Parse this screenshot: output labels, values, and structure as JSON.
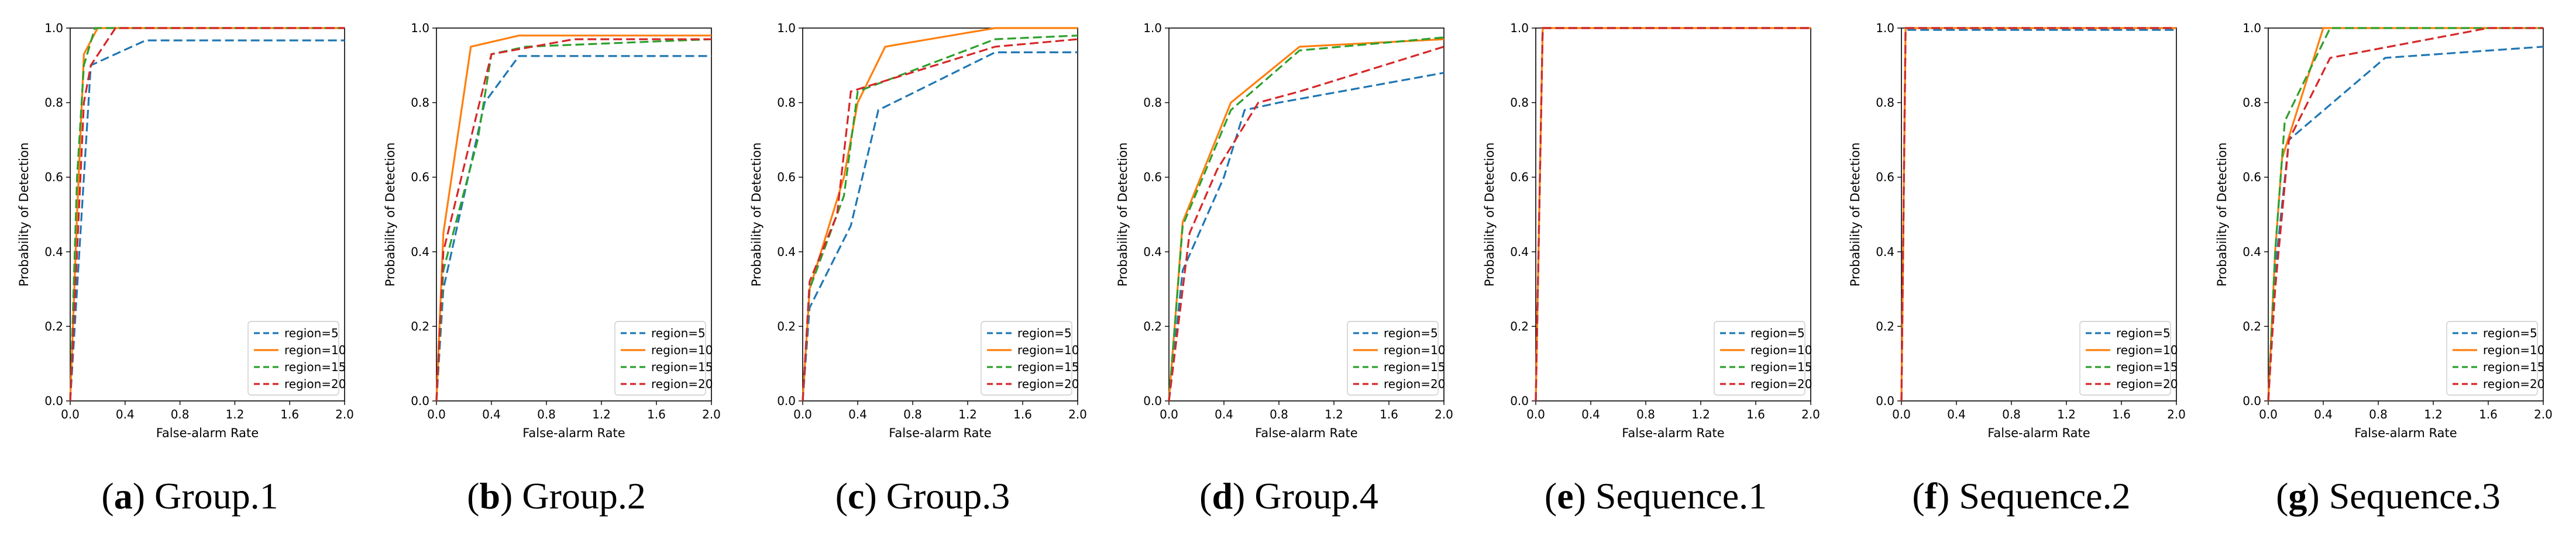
{
  "series_styles": {
    "region=5": {
      "color": "#1f77b4",
      "dash": "dashed"
    },
    "region=10": {
      "color": "#ff7f0e",
      "dash": "solid"
    },
    "region=15": {
      "color": "#2ca02c",
      "dash": "dashed"
    },
    "region=20": {
      "color": "#d62728",
      "dash": "dashed"
    }
  },
  "chart_data": [
    {
      "type": "line",
      "caption": {
        "letter": "a",
        "text": "Group.1"
      },
      "xlabel": "False-alarm Rate",
      "ylabel": "Probability of Detection",
      "xlim": [
        0,
        2.0
      ],
      "ylim": [
        0,
        1.0
      ],
      "xticks": [
        "0.0",
        "0.4",
        "0.8",
        "1.2",
        "1.6",
        "2.0"
      ],
      "yticks": [
        "0.0",
        "0.2",
        "0.4",
        "0.6",
        "0.8",
        "1.0"
      ],
      "legend": [
        "region=5",
        "region=10",
        "region=15",
        "region=20"
      ],
      "legend_position": "lower-right",
      "series": [
        {
          "name": "region=5",
          "x": [
            0,
            0.05,
            0.1,
            0.15,
            0.55,
            2.0
          ],
          "y": [
            0,
            0.3,
            0.6,
            0.9,
            0.967,
            0.967
          ]
        },
        {
          "name": "region=10",
          "x": [
            0,
            0.05,
            0.1,
            0.2,
            2.0
          ],
          "y": [
            0,
            0.5,
            0.93,
            1.0,
            1.0
          ]
        },
        {
          "name": "region=15",
          "x": [
            0,
            0.05,
            0.1,
            0.18,
            2.0
          ],
          "y": [
            0,
            0.6,
            0.9,
            1.0,
            1.0
          ]
        },
        {
          "name": "region=20",
          "x": [
            0,
            0.05,
            0.1,
            0.15,
            0.33,
            2.0
          ],
          "y": [
            0,
            0.4,
            0.8,
            0.9,
            1.0,
            1.0
          ]
        }
      ]
    },
    {
      "type": "line",
      "caption": {
        "letter": "b",
        "text": "Group.2"
      },
      "xlabel": "False-alarm Rate",
      "ylabel": "Probability of Detection",
      "xlim": [
        0,
        2.0
      ],
      "ylim": [
        0,
        1.0
      ],
      "xticks": [
        "0.0",
        "0.4",
        "0.8",
        "1.2",
        "1.6",
        "2.0"
      ],
      "yticks": [
        "0.0",
        "0.2",
        "0.4",
        "0.6",
        "0.8",
        "1.0"
      ],
      "legend": [
        "region=5",
        "region=10",
        "region=15",
        "region=20"
      ],
      "legend_position": "lower-right",
      "series": [
        {
          "name": "region=5",
          "x": [
            0,
            0.05,
            0.35,
            0.6,
            2.0
          ],
          "y": [
            0,
            0.3,
            0.8,
            0.925,
            0.925
          ]
        },
        {
          "name": "region=10",
          "x": [
            0,
            0.05,
            0.25,
            0.6,
            2.0
          ],
          "y": [
            0,
            0.45,
            0.95,
            0.98,
            0.98
          ]
        },
        {
          "name": "region=15",
          "x": [
            0,
            0.05,
            0.3,
            0.4,
            0.65,
            2.0
          ],
          "y": [
            0,
            0.35,
            0.7,
            0.93,
            0.95,
            0.97
          ]
        },
        {
          "name": "region=20",
          "x": [
            0,
            0.05,
            0.3,
            0.4,
            1.0,
            2.0
          ],
          "y": [
            0,
            0.4,
            0.78,
            0.93,
            0.97,
            0.97
          ]
        }
      ]
    },
    {
      "type": "line",
      "caption": {
        "letter": "c",
        "text": "Group.3"
      },
      "xlabel": "False-alarm Rate",
      "ylabel": "Probability of Detection",
      "xlim": [
        0,
        2.0
      ],
      "ylim": [
        0,
        1.0
      ],
      "xticks": [
        "0.0",
        "0.4",
        "0.8",
        "1.2",
        "1.6",
        "2.0"
      ],
      "yticks": [
        "0.0",
        "0.2",
        "0.4",
        "0.6",
        "0.8",
        "1.0"
      ],
      "legend": [
        "region=5",
        "region=10",
        "region=15",
        "region=20"
      ],
      "legend_position": "lower-right",
      "series": [
        {
          "name": "region=5",
          "x": [
            0,
            0.05,
            0.35,
            0.55,
            1.4,
            2.0
          ],
          "y": [
            0,
            0.25,
            0.47,
            0.78,
            0.935,
            0.935
          ]
        },
        {
          "name": "region=10",
          "x": [
            0,
            0.05,
            0.3,
            0.4,
            0.6,
            1.4,
            2.0
          ],
          "y": [
            0,
            0.3,
            0.6,
            0.8,
            0.95,
            1.0,
            1.0
          ]
        },
        {
          "name": "region=15",
          "x": [
            0,
            0.05,
            0.3,
            0.4,
            1.4,
            2.0
          ],
          "y": [
            0,
            0.3,
            0.55,
            0.83,
            0.97,
            0.98
          ]
        },
        {
          "name": "region=20",
          "x": [
            0,
            0.05,
            0.25,
            0.35,
            1.4,
            2.0
          ],
          "y": [
            0,
            0.32,
            0.5,
            0.83,
            0.95,
            0.97
          ]
        }
      ]
    },
    {
      "type": "line",
      "caption": {
        "letter": "d",
        "text": "Group.4"
      },
      "xlabel": "False-alarm Rate",
      "ylabel": "Probability of Detection",
      "xlim": [
        0,
        2.0
      ],
      "ylim": [
        0,
        1.0
      ],
      "xticks": [
        "0.0",
        "0.4",
        "0.8",
        "1.2",
        "1.6",
        "2.0"
      ],
      "yticks": [
        "0.0",
        "0.2",
        "0.4",
        "0.6",
        "0.8",
        "1.0"
      ],
      "legend": [
        "region=5",
        "region=10",
        "region=15",
        "region=20"
      ],
      "legend_position": "lower-right",
      "series": [
        {
          "name": "region=5",
          "x": [
            0,
            0.1,
            0.4,
            0.55,
            0.8,
            2.0
          ],
          "y": [
            0,
            0.35,
            0.6,
            0.78,
            0.8,
            0.88
          ]
        },
        {
          "name": "region=10",
          "x": [
            0,
            0.1,
            0.45,
            0.95,
            2.0
          ],
          "y": [
            0,
            0.48,
            0.8,
            0.95,
            0.97
          ]
        },
        {
          "name": "region=15",
          "x": [
            0,
            0.1,
            0.45,
            0.95,
            2.0
          ],
          "y": [
            0,
            0.47,
            0.78,
            0.94,
            0.975
          ]
        },
        {
          "name": "region=20",
          "x": [
            0,
            0.15,
            0.35,
            0.65,
            0.95,
            2.0
          ],
          "y": [
            0,
            0.45,
            0.62,
            0.8,
            0.83,
            0.95
          ]
        }
      ]
    },
    {
      "type": "line",
      "caption": {
        "letter": "e",
        "text": "Sequence.1"
      },
      "xlabel": "False-alarm Rate",
      "ylabel": "Probability of Detection",
      "xlim": [
        0,
        2.0
      ],
      "ylim": [
        0,
        1.0
      ],
      "xticks": [
        "0.0",
        "0.4",
        "0.8",
        "1.2",
        "1.6",
        "2.0"
      ],
      "yticks": [
        "0.0",
        "0.2",
        "0.4",
        "0.6",
        "0.8",
        "1.0"
      ],
      "legend": [
        "region=5",
        "region=10",
        "region=15",
        "region=20"
      ],
      "legend_position": "lower-right",
      "series": [
        {
          "name": "region=5",
          "x": [
            0,
            0.05,
            2.0
          ],
          "y": [
            0,
            1.0,
            1.0
          ]
        },
        {
          "name": "region=10",
          "x": [
            0,
            0.05,
            2.0
          ],
          "y": [
            0,
            1.0,
            1.0
          ]
        },
        {
          "name": "region=15",
          "x": [
            0,
            0.05,
            2.0
          ],
          "y": [
            0,
            1.0,
            1.0
          ]
        },
        {
          "name": "region=20",
          "x": [
            0,
            0.05,
            2.0
          ],
          "y": [
            0,
            1.0,
            1.0
          ]
        }
      ]
    },
    {
      "type": "line",
      "caption": {
        "letter": "f",
        "text": "Sequence.2"
      },
      "xlabel": "False-alarm Rate",
      "ylabel": "Probability of Detection",
      "xlim": [
        0,
        2.0
      ],
      "ylim": [
        0,
        1.0
      ],
      "xticks": [
        "0.0",
        "0.4",
        "0.8",
        "1.2",
        "1.6",
        "2.0"
      ],
      "yticks": [
        "0.0",
        "0.2",
        "0.4",
        "0.6",
        "0.8",
        "1.0"
      ],
      "legend": [
        "region=5",
        "region=10",
        "region=15",
        "region=20"
      ],
      "legend_position": "lower-right",
      "series": [
        {
          "name": "region=5",
          "x": [
            0,
            0.03,
            2.0
          ],
          "y": [
            0,
            0.995,
            0.995
          ]
        },
        {
          "name": "region=10",
          "x": [
            0,
            0.03,
            2.0
          ],
          "y": [
            0,
            1.0,
            1.0
          ]
        },
        {
          "name": "region=15",
          "x": [
            0,
            0.03,
            2.0
          ],
          "y": [
            0,
            1.0,
            1.0
          ]
        },
        {
          "name": "region=20",
          "x": [
            0,
            0.03,
            2.0
          ],
          "y": [
            0,
            1.0,
            1.0
          ]
        }
      ]
    },
    {
      "type": "line",
      "caption": {
        "letter": "g",
        "text": "Sequence.3"
      },
      "xlabel": "False-alarm Rate",
      "ylabel": "Probability of Detection",
      "xlim": [
        0,
        2.0
      ],
      "ylim": [
        0,
        1.0
      ],
      "xticks": [
        "0.0",
        "0.4",
        "0.8",
        "1.2",
        "1.6",
        "2.0"
      ],
      "yticks": [
        "0.0",
        "0.2",
        "0.4",
        "0.6",
        "0.8",
        "1.0"
      ],
      "legend": [
        "region=5",
        "region=10",
        "region=15",
        "region=20"
      ],
      "legend_position": "lower-right",
      "series": [
        {
          "name": "region=5",
          "x": [
            0,
            0.05,
            0.15,
            0.85,
            2.0
          ],
          "y": [
            0,
            0.35,
            0.7,
            0.92,
            0.95
          ]
        },
        {
          "name": "region=10",
          "x": [
            0,
            0.05,
            0.1,
            0.4,
            1.6,
            2.0
          ],
          "y": [
            0,
            0.4,
            0.65,
            1.0,
            1.0,
            1.0
          ]
        },
        {
          "name": "region=15",
          "x": [
            0,
            0.05,
            0.12,
            0.45,
            2.0
          ],
          "y": [
            0,
            0.4,
            0.75,
            1.0,
            1.0
          ]
        },
        {
          "name": "region=20",
          "x": [
            0,
            0.05,
            0.15,
            0.45,
            1.6,
            2.0
          ],
          "y": [
            0,
            0.3,
            0.7,
            0.92,
            1.0,
            1.0
          ]
        }
      ]
    }
  ]
}
